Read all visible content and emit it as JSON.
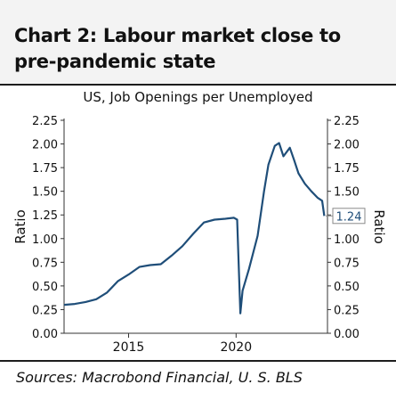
{
  "header": {
    "title": "Chart 2: Labour market close to pre-pandemic state"
  },
  "chart_data": {
    "type": "line",
    "title": "US, Job Openings per Unemployed",
    "ylabel_left": "Ratio",
    "ylabel_right": "Ratio",
    "ylim": [
      0,
      2.25
    ],
    "yticks": [
      "2.25",
      "2.00",
      "1.75",
      "1.50",
      "1.25",
      "1.00",
      "0.75",
      "0.50",
      "0.25",
      "0.00"
    ],
    "xticks": [
      "2015",
      "2020"
    ],
    "last_value_label": "1.24",
    "grid": false,
    "line_color": "#1f4e79",
    "series": [
      {
        "x": [
          2012.0,
          2012.5,
          2013.0,
          2013.5,
          2014.0,
          2014.5,
          2015.0,
          2015.5,
          2016.0,
          2016.5,
          2017.0,
          2017.5,
          2018.0,
          2018.5,
          2019.0,
          2019.5,
          2019.9,
          2020.05,
          2020.2,
          2020.3,
          2020.6,
          2021.0,
          2021.3,
          2021.5,
          2021.8,
          2022.0,
          2022.2,
          2022.5,
          2022.7,
          2022.9,
          2023.2,
          2023.5,
          2023.8,
          2024.0,
          2024.1
        ],
        "y": [
          0.3,
          0.31,
          0.33,
          0.36,
          0.43,
          0.55,
          0.62,
          0.7,
          0.72,
          0.73,
          0.82,
          0.92,
          1.05,
          1.17,
          1.2,
          1.21,
          1.22,
          1.2,
          0.21,
          0.45,
          0.68,
          1.03,
          1.5,
          1.78,
          1.98,
          2.01,
          1.87,
          1.96,
          1.83,
          1.69,
          1.58,
          1.5,
          1.43,
          1.4,
          1.24
        ]
      }
    ]
  },
  "footer": {
    "source": "Sources: Macrobond Financial, U. S. BLS"
  }
}
